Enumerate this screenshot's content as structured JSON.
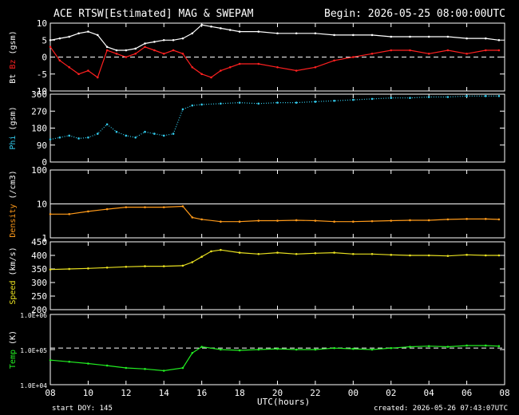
{
  "header": {
    "title": "ACE RTSW[Estimated] MAG & SWEPAM",
    "begin": "Begin: 2026-05-25 08:00:00UTC"
  },
  "footer": {
    "start_doy": "start DOY: 145",
    "created": "created: 2026-05-26 07:43:07UTC"
  },
  "colors": {
    "bt": "#ffffff",
    "bz": "#ff2020",
    "phi": "#33ccee",
    "density": "#ff9a1a",
    "speed": "#e8e020",
    "temp": "#22ee22"
  },
  "chart_data": [
    {
      "type": "line",
      "panel": "bt-bz",
      "ylabel_parts": [
        "Bt",
        "Bz",
        "(gsm)"
      ],
      "ylim": [
        -10,
        10
      ],
      "yticks": [
        "10",
        "5",
        "0",
        "-5",
        "-10"
      ],
      "ytick_values": [
        10,
        5,
        0,
        -5,
        -10
      ],
      "dashed_line": 0,
      "series": [
        {
          "name": "Bt",
          "x": [
            8,
            8.5,
            9,
            9.5,
            10,
            10.5,
            11,
            11.5,
            12,
            12.5,
            13,
            13.5,
            14,
            14.5,
            15,
            15.5,
            16,
            16.5,
            17,
            17.5,
            18,
            19,
            20,
            21,
            22,
            23,
            24,
            25,
            26,
            27,
            28,
            29,
            30,
            31,
            31.7
          ],
          "y": [
            5,
            5.5,
            6,
            7,
            7.5,
            6.5,
            3,
            2,
            2,
            2.5,
            4,
            4.5,
            5,
            5,
            5.5,
            7,
            9.5,
            9,
            8.5,
            8,
            7.5,
            7.5,
            7,
            7,
            7,
            6.5,
            6.5,
            6.5,
            6,
            6,
            6,
            6,
            5.5,
            5.5,
            5
          ]
        },
        {
          "name": "Bz",
          "x": [
            8,
            8.5,
            9,
            9.5,
            10,
            10.5,
            11,
            11.5,
            12,
            12.5,
            13,
            13.5,
            14,
            14.5,
            15,
            15.5,
            16,
            16.5,
            17,
            17.5,
            18,
            19,
            20,
            21,
            22,
            23,
            24,
            25,
            26,
            27,
            28,
            29,
            30,
            31,
            31.7
          ],
          "y": [
            3,
            -1,
            -3,
            -5,
            -4,
            -6,
            2,
            1,
            0,
            1,
            3,
            2,
            1,
            2,
            1,
            -3,
            -5,
            -6,
            -4,
            -3,
            -2,
            -2,
            -3,
            -4,
            -3,
            -1,
            0,
            1,
            2,
            2,
            1,
            2,
            1,
            2,
            2
          ]
        }
      ]
    },
    {
      "type": "scatter",
      "panel": "phi",
      "ylabel_parts": [
        "Phi",
        "(gsm)"
      ],
      "ylim": [
        0,
        360
      ],
      "yticks": [
        "360",
        "270",
        "180",
        "90",
        "0"
      ],
      "ytick_values": [
        360,
        270,
        180,
        90,
        0
      ],
      "series": [
        {
          "name": "Phi",
          "x": [
            8,
            8.5,
            9,
            9.5,
            10,
            10.5,
            11,
            11.5,
            12,
            12.5,
            13,
            13.5,
            14,
            14.5,
            15,
            15.5,
            16,
            17,
            18,
            19,
            20,
            21,
            22,
            23,
            24,
            25,
            26,
            27,
            28,
            29,
            30,
            31,
            31.7
          ],
          "y": [
            120,
            130,
            140,
            125,
            130,
            150,
            200,
            160,
            140,
            130,
            160,
            150,
            140,
            150,
            280,
            300,
            305,
            310,
            315,
            310,
            315,
            315,
            320,
            325,
            330,
            335,
            340,
            340,
            345,
            345,
            350,
            350,
            350
          ]
        }
      ]
    },
    {
      "type": "line",
      "panel": "density",
      "ylabel_parts": [
        "Density",
        "(/cm3)"
      ],
      "yscale": "log",
      "ylim": [
        1,
        100
      ],
      "yticks": [
        "100",
        "10",
        "1"
      ],
      "ytick_values": [
        100,
        10,
        1
      ],
      "solid_line": 10,
      "series": [
        {
          "name": "Density",
          "x": [
            8,
            9,
            10,
            11,
            12,
            13,
            14,
            15,
            15.5,
            16,
            17,
            18,
            19,
            20,
            21,
            22,
            23,
            24,
            25,
            26,
            27,
            28,
            29,
            30,
            31,
            31.7
          ],
          "y": [
            5,
            5,
            6,
            7,
            8,
            8,
            8,
            8.5,
            4,
            3.5,
            3,
            3,
            3.2,
            3.2,
            3.3,
            3.2,
            3,
            3,
            3.1,
            3.2,
            3.3,
            3.3,
            3.5,
            3.6,
            3.6,
            3.5
          ]
        }
      ]
    },
    {
      "type": "line",
      "panel": "speed",
      "ylabel_parts": [
        "Speed",
        "(km/s)"
      ],
      "ylim": [
        200,
        450
      ],
      "yticks": [
        "450",
        "400",
        "350",
        "300",
        "250",
        "200"
      ],
      "ytick_values": [
        450,
        400,
        350,
        300,
        250,
        200
      ],
      "series": [
        {
          "name": "Speed",
          "x": [
            8,
            9,
            10,
            11,
            12,
            13,
            14,
            15,
            15.5,
            16,
            16.5,
            17,
            18,
            19,
            20,
            21,
            22,
            23,
            24,
            25,
            26,
            27,
            28,
            29,
            30,
            31,
            31.7
          ],
          "y": [
            348,
            350,
            352,
            355,
            358,
            360,
            360,
            362,
            375,
            395,
            415,
            420,
            410,
            405,
            410,
            405,
            408,
            410,
            405,
            405,
            402,
            400,
            400,
            398,
            402,
            400,
            400
          ]
        }
      ]
    },
    {
      "type": "line",
      "panel": "temp",
      "ylabel_parts": [
        "Temp",
        "(K)"
      ],
      "yscale": "log",
      "ylim": [
        10000,
        1000000
      ],
      "yticks": [
        "1.0E+06",
        "1.0E+05",
        "1.0E+04"
      ],
      "ytick_values": [
        1000000,
        100000,
        10000
      ],
      "dashed_line": 110000,
      "series": [
        {
          "name": "Temp",
          "x": [
            8,
            9,
            10,
            11,
            12,
            13,
            14,
            15,
            15.5,
            16,
            17,
            18,
            19,
            20,
            21,
            22,
            23,
            24,
            25,
            26,
            27,
            28,
            29,
            30,
            31,
            31.7
          ],
          "y": [
            50000,
            45000,
            40000,
            35000,
            30000,
            28000,
            25000,
            30000,
            80000,
            120000,
            100000,
            95000,
            100000,
            105000,
            100000,
            100000,
            110000,
            105000,
            100000,
            110000,
            120000,
            125000,
            120000,
            130000,
            130000,
            125000
          ]
        }
      ]
    }
  ],
  "xaxis": {
    "ticks": [
      "08",
      "10",
      "12",
      "14",
      "16",
      "18",
      "20",
      "22",
      "00",
      "02",
      "04",
      "06",
      "08"
    ],
    "tick_values": [
      8,
      10,
      12,
      14,
      16,
      18,
      20,
      22,
      24,
      26,
      28,
      30,
      32
    ],
    "xlim": [
      8,
      32
    ],
    "label": "UTC(hours)"
  }
}
